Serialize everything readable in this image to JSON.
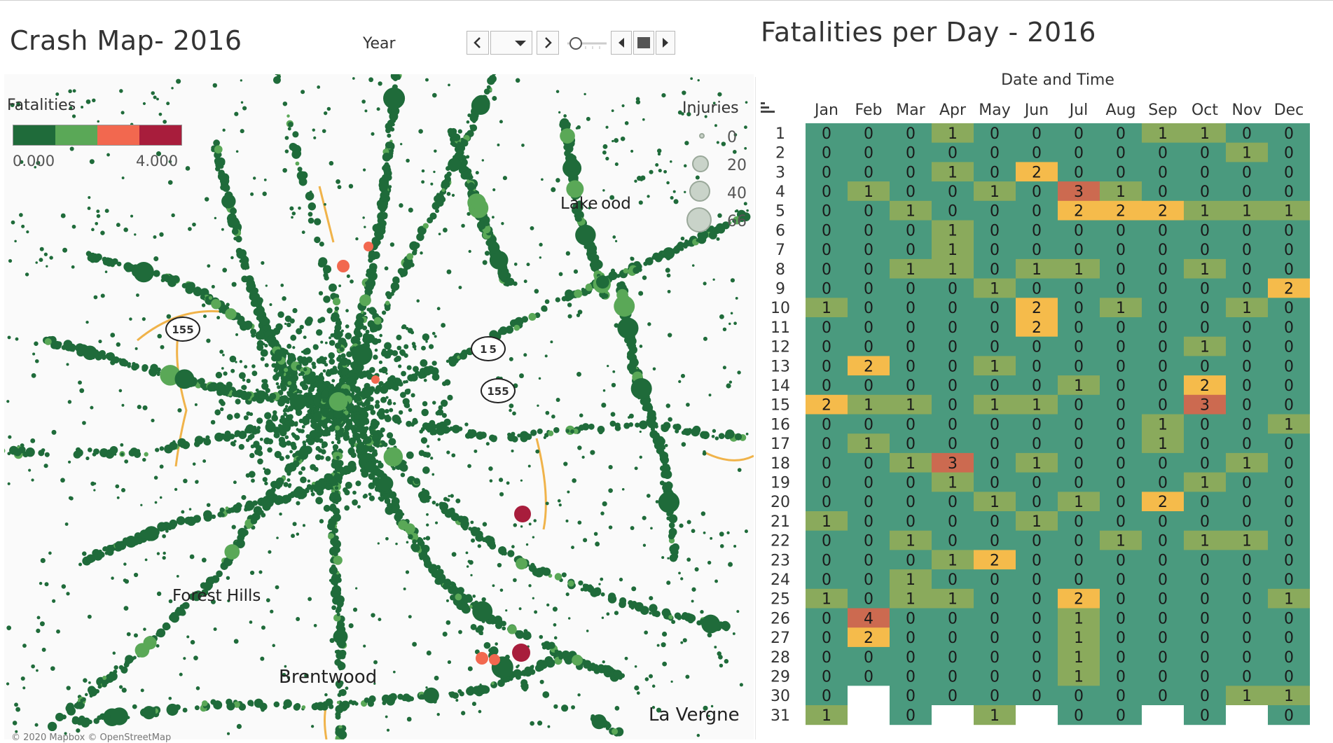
{
  "map_panel": {
    "title": "Crash Map- 2016",
    "year_label": "Year",
    "legend": {
      "fatalities_title": "Fatalities",
      "fatalities_min": "0.000",
      "fatalities_max": "4.000",
      "fatalities_colors": [
        "#1f6b3a",
        "#5aa857",
        "#f2684f",
        "#a81d3c"
      ],
      "injuries_title": "Injuries",
      "injury_sizes": [
        "0",
        "20",
        "40",
        "66"
      ]
    },
    "places": {
      "lakewood": "Lake ood",
      "forest_hills": "Forest Hills",
      "brentwood": "Brentwood",
      "la_vergne": "La Vergne"
    },
    "shields": {
      "i155_west": "155",
      "i155_north": "1 5",
      "i155_south": "155"
    },
    "attribution": "© 2020 Mapbox © OpenStreetMap"
  },
  "heatmap_panel": {
    "title": "Fatalities per Day - 2016",
    "axis_title": "Date and Time",
    "months": [
      "Jan",
      "Feb",
      "Mar",
      "Apr",
      "May",
      "Jun",
      "Jul",
      "Aug",
      "Sep",
      "Oct",
      "Nov",
      "Dec"
    ],
    "days": [
      "1",
      "2",
      "3",
      "4",
      "5",
      "6",
      "7",
      "8",
      "9",
      "10",
      "11",
      "12",
      "13",
      "14",
      "15",
      "16",
      "17",
      "18",
      "19",
      "20",
      "21",
      "22",
      "23",
      "24",
      "25",
      "26",
      "27",
      "28",
      "29",
      "30",
      "31"
    ],
    "colors": {
      "0": "#4a9a7e",
      "1": "#8aaa5c",
      "2": "#f5bb4b",
      "3": "#cc6a50",
      "4": "#cc6a50",
      "empty": "#ffffff"
    }
  },
  "chart_data": {
    "type": "heatmap",
    "title": "Fatalities per Day - 2016",
    "xlabel": "Date and Time",
    "x": [
      "Jan",
      "Feb",
      "Mar",
      "Apr",
      "May",
      "Jun",
      "Jul",
      "Aug",
      "Sep",
      "Oct",
      "Nov",
      "Dec"
    ],
    "y": [
      "1",
      "2",
      "3",
      "4",
      "5",
      "6",
      "7",
      "8",
      "9",
      "10",
      "11",
      "12",
      "13",
      "14",
      "15",
      "16",
      "17",
      "18",
      "19",
      "20",
      "21",
      "22",
      "23",
      "24",
      "25",
      "26",
      "27",
      "28",
      "29",
      "30",
      "31"
    ],
    "values": [
      [
        0,
        0,
        0,
        1,
        0,
        0,
        0,
        0,
        1,
        1,
        0,
        0
      ],
      [
        0,
        0,
        0,
        0,
        0,
        0,
        0,
        0,
        0,
        0,
        1,
        0
      ],
      [
        0,
        0,
        0,
        1,
        0,
        2,
        0,
        0,
        0,
        0,
        0,
        0
      ],
      [
        0,
        1,
        0,
        0,
        1,
        0,
        3,
        1,
        0,
        0,
        0,
        0
      ],
      [
        0,
        0,
        1,
        0,
        0,
        0,
        2,
        2,
        2,
        1,
        1,
        1
      ],
      [
        0,
        0,
        0,
        1,
        0,
        0,
        0,
        0,
        0,
        0,
        0,
        0
      ],
      [
        0,
        0,
        0,
        1,
        0,
        0,
        0,
        0,
        0,
        0,
        0,
        0
      ],
      [
        0,
        0,
        1,
        1,
        0,
        1,
        1,
        0,
        0,
        1,
        0,
        0
      ],
      [
        0,
        0,
        0,
        0,
        1,
        0,
        0,
        0,
        0,
        0,
        0,
        2
      ],
      [
        1,
        0,
        0,
        0,
        0,
        2,
        0,
        1,
        0,
        0,
        1,
        0
      ],
      [
        0,
        0,
        0,
        0,
        0,
        2,
        0,
        0,
        0,
        0,
        0,
        0
      ],
      [
        0,
        0,
        0,
        0,
        0,
        0,
        0,
        0,
        0,
        1,
        0,
        0
      ],
      [
        0,
        2,
        0,
        0,
        1,
        0,
        0,
        0,
        0,
        0,
        0,
        0
      ],
      [
        0,
        0,
        0,
        0,
        0,
        0,
        1,
        0,
        0,
        2,
        0,
        0
      ],
      [
        2,
        1,
        1,
        0,
        1,
        1,
        0,
        0,
        0,
        3,
        0,
        0
      ],
      [
        0,
        0,
        0,
        0,
        0,
        0,
        0,
        0,
        1,
        0,
        0,
        1
      ],
      [
        0,
        1,
        0,
        0,
        0,
        0,
        0,
        0,
        1,
        0,
        0,
        0
      ],
      [
        0,
        0,
        1,
        3,
        0,
        1,
        0,
        0,
        0,
        0,
        1,
        0
      ],
      [
        0,
        0,
        0,
        1,
        0,
        0,
        0,
        0,
        0,
        1,
        0,
        0
      ],
      [
        0,
        0,
        0,
        0,
        1,
        0,
        1,
        0,
        2,
        0,
        0,
        0
      ],
      [
        1,
        0,
        0,
        0,
        0,
        1,
        0,
        0,
        0,
        0,
        0,
        0
      ],
      [
        0,
        0,
        1,
        0,
        0,
        0,
        0,
        1,
        0,
        1,
        1,
        0
      ],
      [
        0,
        0,
        0,
        1,
        2,
        0,
        0,
        0,
        0,
        0,
        0,
        0
      ],
      [
        0,
        0,
        1,
        0,
        0,
        0,
        0,
        0,
        0,
        0,
        0,
        0
      ],
      [
        1,
        0,
        1,
        1,
        0,
        0,
        2,
        0,
        0,
        0,
        0,
        1
      ],
      [
        0,
        4,
        0,
        0,
        0,
        0,
        1,
        0,
        0,
        0,
        0,
        0
      ],
      [
        0,
        2,
        0,
        0,
        0,
        0,
        1,
        0,
        0,
        0,
        0,
        0
      ],
      [
        0,
        0,
        0,
        0,
        0,
        0,
        1,
        0,
        0,
        0,
        0,
        0
      ],
      [
        0,
        0,
        0,
        0,
        0,
        0,
        1,
        0,
        0,
        0,
        0,
        0
      ],
      [
        0,
        null,
        0,
        0,
        0,
        0,
        0,
        0,
        0,
        0,
        1,
        1
      ],
      [
        1,
        null,
        0,
        null,
        1,
        null,
        0,
        0,
        null,
        0,
        null,
        0
      ]
    ]
  }
}
